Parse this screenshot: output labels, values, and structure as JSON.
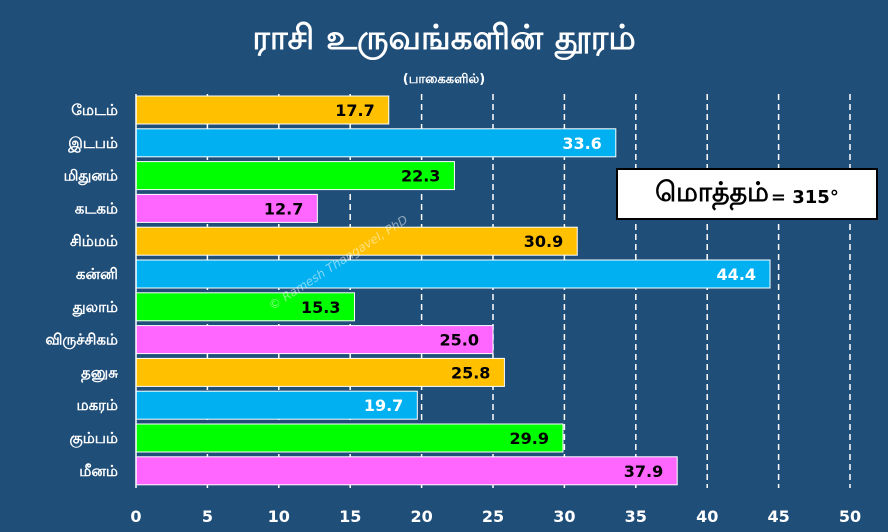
{
  "title": "ராசி உருவங்களின் தூரம்",
  "subtitle": "(பாகைகளில்)",
  "total_box": {
    "label": "மொத்தம்",
    "value": "= 315°"
  },
  "watermark": "© Ramesh Thangavel, PhD",
  "colors": {
    "background": "#1f4e79",
    "grid": "#ffffff",
    "orange": "#ffc000",
    "blue": "#00b0f0",
    "green": "#00ff00",
    "pink": "#ff66ff"
  },
  "chart_data": {
    "type": "bar",
    "orientation": "horizontal",
    "title": "ராசி உருவங்களின் தூரம்",
    "subtitle": "(பாகைகளில்)",
    "categories": [
      "மேடம்",
      "இடபம்",
      "மிதுனம்",
      "கடகம்",
      "சிம்மம்",
      "கன்னி",
      "துலாம்",
      "விருச்சிகம்",
      "தனுசு",
      "மகரம்",
      "கும்பம்",
      "மீனம்"
    ],
    "values": [
      17.7,
      33.6,
      22.3,
      12.7,
      30.9,
      44.4,
      15.3,
      25.0,
      25.8,
      19.7,
      29.9,
      37.9
    ],
    "value_labels": [
      "17.7",
      "33.6",
      "22.3",
      "12.7",
      "30.9",
      "44.4",
      "15.3",
      "25.0",
      "25.8",
      "19.7",
      "29.9",
      "37.9"
    ],
    "bar_colors": [
      "#ffc000",
      "#00b0f0",
      "#00ff00",
      "#ff66ff",
      "#ffc000",
      "#00b0f0",
      "#00ff00",
      "#ff66ff",
      "#ffc000",
      "#00b0f0",
      "#00ff00",
      "#ff66ff"
    ],
    "label_colors": [
      "#000000",
      "#ffffff",
      "#000000",
      "#000000",
      "#000000",
      "#ffffff",
      "#000000",
      "#000000",
      "#000000",
      "#ffffff",
      "#000000",
      "#000000"
    ],
    "xlim": [
      0,
      50
    ],
    "xticks": [
      0,
      5,
      10,
      15,
      20,
      25,
      30,
      35,
      40,
      45,
      50
    ],
    "grid": "vertical dashed"
  }
}
